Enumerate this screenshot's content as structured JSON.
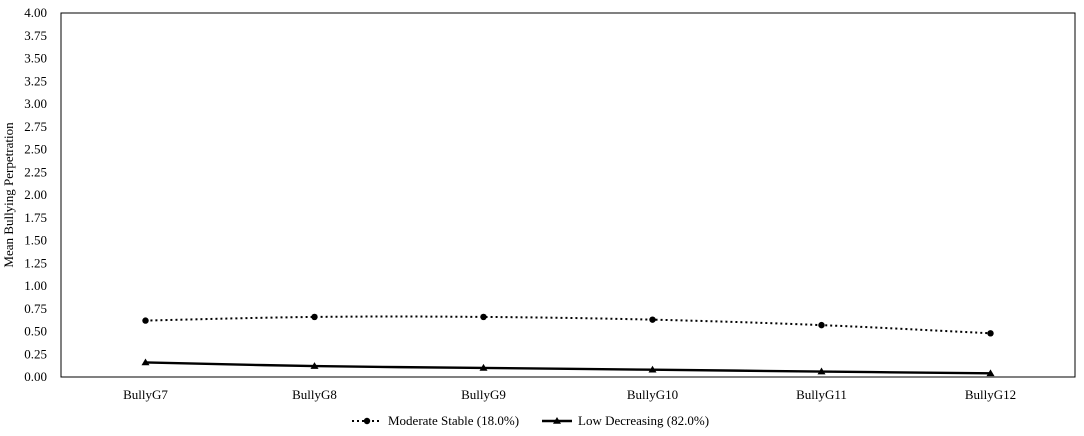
{
  "chart_data": {
    "type": "line",
    "title": "",
    "xlabel": "",
    "ylabel": "Mean Bullying Perpetration",
    "categories": [
      "BullyG7",
      "BullyG8",
      "BullyG9",
      "BullyG10",
      "BullyG11",
      "BullyG12"
    ],
    "ylim": [
      0,
      4
    ],
    "yticks": [
      "0.00",
      "0.25",
      "0.50",
      "0.75",
      "1.00",
      "1.25",
      "1.50",
      "1.75",
      "2.00",
      "2.25",
      "2.50",
      "2.75",
      "3.00",
      "3.25",
      "3.50",
      "3.75",
      "4.00"
    ],
    "grid": false,
    "legend_position": "bottom",
    "series": [
      {
        "name": "Moderate Stable (18.0%)",
        "values": [
          0.62,
          0.66,
          0.66,
          0.63,
          0.57,
          0.48
        ],
        "line_style": "dotted",
        "marker": "circle",
        "color": "#000000"
      },
      {
        "name": "Low Decreasing (82.0%)",
        "values": [
          0.16,
          0.12,
          0.1,
          0.08,
          0.06,
          0.04
        ],
        "line_style": "solid",
        "marker": "triangle",
        "color": "#000000"
      }
    ]
  }
}
